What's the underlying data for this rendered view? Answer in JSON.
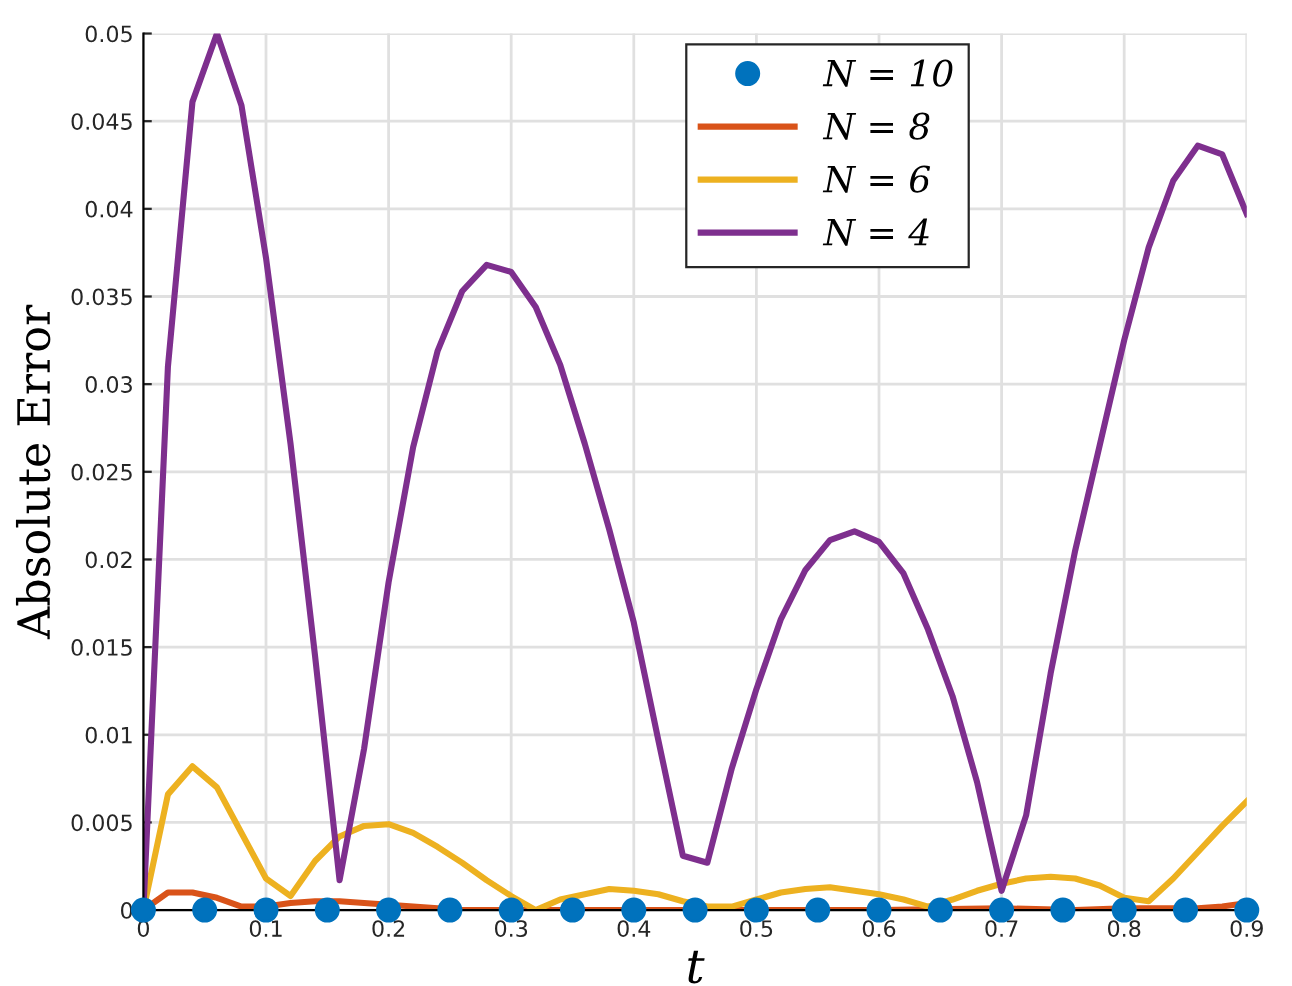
{
  "chart_data": {
    "type": "line",
    "xlabel": "t",
    "ylabel": "Absolute Error",
    "xlim": [
      0,
      0.9
    ],
    "ylim": [
      0,
      0.05
    ],
    "xticks": [
      0,
      0.1,
      0.2,
      0.3,
      0.4,
      0.5,
      0.6,
      0.7,
      0.8,
      0.9
    ],
    "yticks": [
      0,
      0.005,
      0.01,
      0.015,
      0.02,
      0.025,
      0.03,
      0.035,
      0.04,
      0.045,
      0.05
    ],
    "grid": true,
    "legend": "top",
    "line_style": "solid",
    "series": [
      {
        "name": "N = 10",
        "type": "scatter",
        "marker": "circle",
        "color": "#0072bd",
        "x": [
          0,
          0.05,
          0.1,
          0.15,
          0.2,
          0.25,
          0.3,
          0.35,
          0.4,
          0.45,
          0.5,
          0.55,
          0.6,
          0.65,
          0.7,
          0.75,
          0.8,
          0.85,
          0.9
        ],
        "values": [
          0,
          0,
          0,
          0,
          0,
          0,
          0,
          0,
          0,
          0,
          0,
          0,
          0,
          0,
          0,
          0,
          0,
          0,
          0
        ]
      },
      {
        "name": "N = 8",
        "color": "#d95319",
        "x": [
          0,
          0.02,
          0.04,
          0.06,
          0.08,
          0.1,
          0.12,
          0.14,
          0.16,
          0.18,
          0.2,
          0.22,
          0.24,
          0.26,
          0.3,
          0.4,
          0.5,
          0.6,
          0.7,
          0.76,
          0.8,
          0.84,
          0.86,
          0.88,
          0.9
        ],
        "values": [
          0,
          0.001,
          0.001,
          0.0007,
          0.0002,
          0.0002,
          0.0004,
          0.0005,
          0.0005,
          0.0004,
          0.0003,
          0.0002,
          0.0001,
          0,
          0,
          0,
          0,
          0,
          0.0001,
          0,
          0.0001,
          0.0001,
          0.0001,
          0.0002,
          0.0004
        ]
      },
      {
        "name": "N = 6",
        "color": "#edb120",
        "x": [
          0,
          0.02,
          0.04,
          0.06,
          0.08,
          0.1,
          0.12,
          0.14,
          0.16,
          0.18,
          0.2,
          0.22,
          0.24,
          0.26,
          0.28,
          0.3,
          0.32,
          0.34,
          0.36,
          0.38,
          0.4,
          0.42,
          0.44,
          0.46,
          0.48,
          0.5,
          0.52,
          0.54,
          0.56,
          0.58,
          0.6,
          0.62,
          0.64,
          0.66,
          0.68,
          0.7,
          0.72,
          0.74,
          0.76,
          0.78,
          0.8,
          0.82,
          0.84,
          0.86,
          0.88,
          0.9
        ],
        "values": [
          0,
          0.0066,
          0.0082,
          0.007,
          0.0044,
          0.0018,
          0.0008,
          0.0028,
          0.0042,
          0.0048,
          0.0049,
          0.0044,
          0.0036,
          0.0027,
          0.0017,
          0.0008,
          0,
          0.0006,
          0.0009,
          0.0012,
          0.0011,
          0.0009,
          0.0005,
          0.0002,
          0.0002,
          0.0006,
          0.001,
          0.0012,
          0.0013,
          0.0011,
          0.0009,
          0.0006,
          0.0002,
          0.0006,
          0.0011,
          0.0015,
          0.0018,
          0.0019,
          0.0018,
          0.0014,
          0.0007,
          0.0005,
          0.0018,
          0.0033,
          0.0048,
          0.0062
        ]
      },
      {
        "name": "N = 4",
        "color": "#7e2f8e",
        "x": [
          0,
          0.02,
          0.04,
          0.06,
          0.08,
          0.1,
          0.12,
          0.14,
          0.16,
          0.18,
          0.2,
          0.22,
          0.24,
          0.26,
          0.28,
          0.3,
          0.32,
          0.34,
          0.36,
          0.38,
          0.4,
          0.42,
          0.44,
          0.46,
          0.48,
          0.5,
          0.52,
          0.54,
          0.56,
          0.58,
          0.6,
          0.62,
          0.64,
          0.66,
          0.68,
          0.7,
          0.72,
          0.74,
          0.76,
          0.78,
          0.8,
          0.82,
          0.84,
          0.86,
          0.88,
          0.9
        ],
        "values": [
          0,
          0.031,
          0.0461,
          0.05,
          0.0459,
          0.0372,
          0.0266,
          0.0145,
          0.0017,
          0.0092,
          0.0187,
          0.0264,
          0.0319,
          0.0353,
          0.0368,
          0.0364,
          0.0344,
          0.0311,
          0.0266,
          0.0217,
          0.0164,
          0.0097,
          0.0031,
          0.0027,
          0.0081,
          0.0126,
          0.0166,
          0.0194,
          0.0211,
          0.0216,
          0.021,
          0.0192,
          0.016,
          0.0122,
          0.0073,
          0.0011,
          0.0054,
          0.0135,
          0.0205,
          0.0265,
          0.0325,
          0.0378,
          0.0416,
          0.0436,
          0.0431,
          0.0397
        ]
      }
    ]
  }
}
